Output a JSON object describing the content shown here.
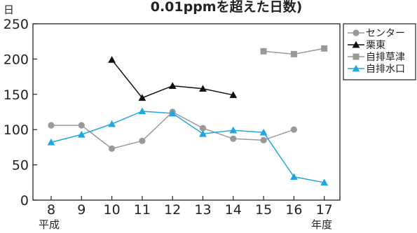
{
  "chart_data": {
    "type": "line",
    "title": "0.01ppmを超えた日数)",
    "ylabel": "日",
    "xlabel_left": "平成",
    "xlabel_right": "年度",
    "x": [
      8,
      9,
      10,
      11,
      12,
      13,
      14,
      15,
      16,
      17
    ],
    "x_tick_labels": [
      "8",
      "9",
      "10",
      "11",
      "12",
      "13",
      "14",
      "15",
      "16",
      "17"
    ],
    "ylim": [
      0,
      250
    ],
    "y_ticks": [
      0,
      50,
      100,
      150,
      200,
      250
    ],
    "y_tick_labels": [
      "0",
      "50",
      "100",
      "150",
      "200",
      "250"
    ],
    "grid": false,
    "legend_position": "top-right",
    "series": [
      {
        "name": "センター",
        "color": "#999999",
        "marker": "circle",
        "values": [
          106,
          106,
          73,
          84,
          125,
          102,
          87,
          85,
          100,
          null
        ]
      },
      {
        "name": "栗東",
        "color": "#111111",
        "marker": "triangle",
        "values": [
          null,
          null,
          199,
          145,
          162,
          158,
          149,
          null,
          null,
          null
        ]
      },
      {
        "name": "自排草津",
        "color": "#999999",
        "marker": "square",
        "values": [
          null,
          null,
          null,
          null,
          null,
          null,
          null,
          211,
          207,
          215
        ]
      },
      {
        "name": "自排水口",
        "color": "#1ea7e1",
        "marker": "triangle",
        "values": [
          82,
          93,
          108,
          126,
          123,
          94,
          99,
          96,
          33,
          25
        ]
      }
    ]
  }
}
